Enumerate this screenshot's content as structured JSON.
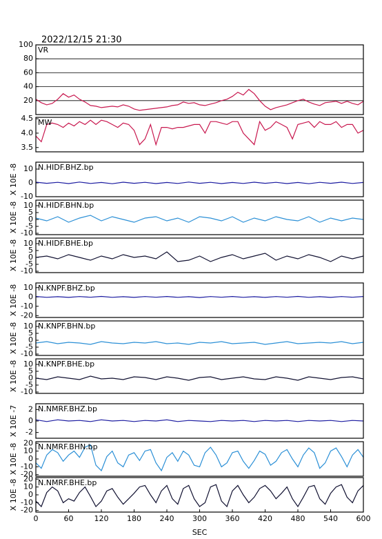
{
  "title": "2022/12/15 21:30",
  "chart_data": [
    {
      "type": "line",
      "title": "VR",
      "color": "#c8174e",
      "xlim": [
        0,
        600
      ],
      "ylim": [
        0,
        100
      ],
      "yticks": [
        20,
        40,
        60,
        80,
        100
      ],
      "grid": true,
      "x": [
        0,
        10,
        20,
        30,
        40,
        50,
        60,
        70,
        80,
        90,
        100,
        110,
        120,
        130,
        140,
        150,
        160,
        170,
        180,
        190,
        200,
        210,
        220,
        230,
        240,
        250,
        260,
        270,
        280,
        290,
        300,
        310,
        320,
        330,
        340,
        350,
        360,
        370,
        380,
        390,
        400,
        410,
        420,
        430,
        440,
        450,
        460,
        470,
        480,
        490,
        500,
        510,
        520,
        530,
        540,
        550,
        560,
        570,
        580,
        590,
        600
      ],
      "values": [
        22,
        17,
        14,
        16,
        22,
        30,
        25,
        28,
        22,
        18,
        13,
        12,
        10,
        11,
        12,
        11,
        14,
        12,
        8,
        6,
        7,
        8,
        9,
        10,
        11,
        13,
        14,
        18,
        16,
        17,
        14,
        13,
        15,
        17,
        20,
        22,
        26,
        32,
        28,
        36,
        30,
        20,
        12,
        7,
        10,
        12,
        14,
        17,
        20,
        22,
        18,
        15,
        13,
        17,
        18,
        19,
        16,
        19,
        16,
        14,
        19
      ]
    },
    {
      "type": "line",
      "title": "MW",
      "color": "#c8174e",
      "xlim": [
        0,
        600
      ],
      "ylim": [
        3.35,
        4.55
      ],
      "yticks": [
        3.5,
        {
          "value": 4.0,
          "label": "4.0"
        },
        4.5
      ],
      "grid": false,
      "x": [
        0,
        10,
        20,
        30,
        40,
        50,
        60,
        70,
        80,
        90,
        100,
        110,
        120,
        130,
        140,
        150,
        160,
        170,
        180,
        190,
        200,
        210,
        220,
        230,
        240,
        250,
        260,
        270,
        280,
        290,
        300,
        310,
        320,
        330,
        340,
        350,
        360,
        370,
        380,
        390,
        400,
        410,
        420,
        430,
        440,
        450,
        460,
        470,
        480,
        490,
        500,
        510,
        520,
        530,
        540,
        550,
        560,
        570,
        580,
        590,
        600
      ],
      "values": [
        3.9,
        3.7,
        4.3,
        4.35,
        4.3,
        4.2,
        4.35,
        4.25,
        4.4,
        4.3,
        4.45,
        4.3,
        4.45,
        4.4,
        4.3,
        4.2,
        4.35,
        4.3,
        4.1,
        3.6,
        3.8,
        4.3,
        3.6,
        4.2,
        4.2,
        4.15,
        4.2,
        4.2,
        4.25,
        4.3,
        4.3,
        4.0,
        4.4,
        4.4,
        4.35,
        4.3,
        4.4,
        4.4,
        4.0,
        3.8,
        3.6,
        4.4,
        4.1,
        4.2,
        4.4,
        4.3,
        4.2,
        3.8,
        4.3,
        4.35,
        4.4,
        4.2,
        4.4,
        4.3,
        4.3,
        4.4,
        4.2,
        4.3,
        4.3,
        4.0,
        4.1
      ]
    },
    {
      "type": "line",
      "title": "N.HIDF.BHZ.bp",
      "ylabel": "X 10E -8",
      "color": "#1a1aa0",
      "xlim": [
        0,
        600
      ],
      "ylim": [
        -10,
        15
      ],
      "yticks": [
        -10,
        0,
        10
      ],
      "grid": false,
      "x": [
        0,
        20,
        40,
        60,
        80,
        100,
        120,
        140,
        160,
        180,
        200,
        220,
        240,
        260,
        280,
        300,
        320,
        340,
        360,
        380,
        400,
        420,
        440,
        460,
        480,
        500,
        520,
        540,
        560,
        580,
        600
      ],
      "values": [
        0.5,
        -0.3,
        0.4,
        -0.5,
        0.6,
        -0.4,
        0.3,
        -0.6,
        0.5,
        -0.3,
        0.4,
        -0.5,
        0.3,
        -0.4,
        0.6,
        -0.3,
        0.4,
        -0.5,
        0.3,
        -0.4,
        0.5,
        -0.3,
        0.4,
        -0.5,
        0.3,
        -0.6,
        0.4,
        -0.3,
        0.5,
        -0.4,
        0.3
      ]
    },
    {
      "type": "line",
      "title": "N.HIDF.BHN.bp",
      "ylabel": "X 10E -8",
      "color": "#2a8fd6",
      "xlim": [
        0,
        600
      ],
      "ylim": [
        -11,
        14
      ],
      "yticks": [
        -10,
        -5,
        0,
        5,
        10
      ],
      "grid": false,
      "x": [
        0,
        20,
        40,
        60,
        80,
        100,
        120,
        140,
        160,
        180,
        200,
        220,
        240,
        260,
        280,
        300,
        320,
        340,
        360,
        380,
        400,
        420,
        440,
        460,
        480,
        500,
        520,
        540,
        560,
        580,
        600
      ],
      "values": [
        1,
        -1,
        2,
        -2,
        1,
        3,
        -1,
        2,
        0,
        -2,
        1,
        2,
        -1,
        1,
        -2,
        2,
        1,
        -1,
        2,
        -2,
        1,
        -1,
        2,
        0,
        -1,
        2,
        -2,
        1,
        -1,
        1,
        0
      ]
    },
    {
      "type": "line",
      "title": "N.HIDF.BHE.bp",
      "ylabel": "X 10E -8",
      "color": "#101030",
      "xlim": [
        0,
        600
      ],
      "ylim": [
        -11,
        14
      ],
      "yticks": [
        -10,
        -5,
        0,
        5,
        10
      ],
      "grid": false,
      "x": [
        0,
        20,
        40,
        60,
        80,
        100,
        120,
        140,
        160,
        180,
        200,
        220,
        240,
        260,
        280,
        300,
        320,
        340,
        360,
        380,
        400,
        420,
        440,
        460,
        480,
        500,
        520,
        540,
        560,
        580,
        600
      ],
      "values": [
        0,
        1,
        -1,
        2,
        0,
        -2,
        1,
        -1,
        2,
        0,
        1,
        -1,
        4,
        -3,
        -2,
        1,
        -3,
        0,
        2,
        -1,
        1,
        3,
        -2,
        1,
        -1,
        2,
        0,
        -3,
        1,
        -1,
        1
      ]
    },
    {
      "type": "line",
      "title": "N.KNPF.BHZ.bp",
      "ylabel": "X 10E -8",
      "color": "#1a1aa0",
      "xlim": [
        0,
        600
      ],
      "ylim": [
        -22,
        15
      ],
      "yticks": [
        -20,
        -10,
        0,
        10
      ],
      "grid": false,
      "x": [
        0,
        20,
        40,
        60,
        80,
        100,
        120,
        140,
        160,
        180,
        200,
        220,
        240,
        260,
        280,
        300,
        320,
        340,
        360,
        380,
        400,
        420,
        440,
        460,
        480,
        500,
        520,
        540,
        560,
        580,
        600
      ],
      "values": [
        0.5,
        -0.4,
        0.3,
        -0.5,
        0.4,
        -0.3,
        0.6,
        -0.4,
        0.3,
        -0.5,
        0.4,
        -0.3,
        0.5,
        -0.4,
        0.3,
        -0.6,
        0.4,
        -0.3,
        0.5,
        -0.4,
        0.3,
        -0.5,
        0.4,
        -0.3,
        0.6,
        -0.4,
        0.3,
        -0.5,
        0.4,
        -0.3,
        0.5
      ]
    },
    {
      "type": "line",
      "title": "N.KNPF.BHN.bp",
      "ylabel": "X 10E -8",
      "color": "#2a8fd6",
      "xlim": [
        0,
        600
      ],
      "ylim": [
        -11,
        14
      ],
      "yticks": [
        -10,
        -5,
        0,
        5,
        10
      ],
      "grid": false,
      "x": [
        0,
        20,
        40,
        60,
        80,
        100,
        120,
        140,
        160,
        180,
        200,
        220,
        240,
        260,
        280,
        300,
        320,
        340,
        360,
        380,
        400,
        420,
        440,
        460,
        480,
        500,
        520,
        540,
        560,
        580,
        600
      ],
      "values": [
        -2,
        -1,
        -2.5,
        -1.5,
        -2,
        -3,
        -1,
        -2,
        -2.5,
        -1.5,
        -2,
        -1,
        -2.5,
        -2,
        -3,
        -1.5,
        -2,
        -1,
        -2.5,
        -2,
        -1.5,
        -3,
        -2,
        -1,
        -2.5,
        -2,
        -1.5,
        -2,
        -1,
        -2.5,
        -1.5
      ]
    },
    {
      "type": "line",
      "title": "N.KNPF.BHE.bp",
      "ylabel": "X 10E -8",
      "color": "#101030",
      "xlim": [
        0,
        600
      ],
      "ylim": [
        -11,
        14
      ],
      "yticks": [
        -10,
        -5,
        0,
        5,
        10
      ],
      "grid": false,
      "x": [
        0,
        20,
        40,
        60,
        80,
        100,
        120,
        140,
        160,
        180,
        200,
        220,
        240,
        260,
        280,
        300,
        320,
        340,
        360,
        380,
        400,
        420,
        440,
        460,
        480,
        500,
        520,
        540,
        560,
        580,
        600
      ],
      "values": [
        0,
        -1,
        1,
        0,
        -1,
        1.5,
        -0.5,
        0,
        -1,
        1,
        0.5,
        -1,
        1,
        0,
        -1.5,
        0.5,
        1,
        -1,
        0,
        1,
        -0.5,
        -1,
        1,
        0,
        -1.5,
        1,
        0,
        -1,
        0.5,
        1,
        -0.5
      ]
    },
    {
      "type": "line",
      "title": "N.NMRF.BHZ.bp",
      "ylabel": "X 10E -7",
      "color": "#1a1aa0",
      "xlim": [
        0,
        600
      ],
      "ylim": [
        -3,
        3
      ],
      "yticks": [
        -2,
        0,
        2
      ],
      "grid": false,
      "x": [
        0,
        20,
        40,
        60,
        80,
        100,
        120,
        140,
        160,
        180,
        200,
        220,
        240,
        260,
        280,
        300,
        320,
        340,
        360,
        380,
        400,
        420,
        440,
        460,
        480,
        500,
        520,
        540,
        560,
        580,
        600
      ],
      "values": [
        0.2,
        -0.1,
        0.2,
        0,
        0.1,
        -0.1,
        0.2,
        0,
        0.1,
        -0.1,
        0.1,
        0,
        0.2,
        -0.1,
        0.1,
        0,
        -0.1,
        0.1,
        0,
        0.1,
        -0.1,
        0.1,
        0,
        0.1,
        -0.1,
        0.1,
        0,
        0.1,
        -0.1,
        0.1,
        0
      ]
    },
    {
      "type": "line",
      "title": "N.NMRF.BHN.bp",
      "ylabel": "X 10E -8",
      "color": "#2a8fd6",
      "xlim": [
        0,
        600
      ],
      "ylim": [
        -22,
        22
      ],
      "yticks": [
        -20,
        -10,
        0,
        10,
        20
      ],
      "grid": false,
      "x": [
        0,
        10,
        20,
        30,
        40,
        50,
        60,
        70,
        80,
        90,
        100,
        110,
        120,
        130,
        140,
        150,
        160,
        170,
        180,
        190,
        200,
        210,
        220,
        230,
        240,
        250,
        260,
        270,
        280,
        290,
        300,
        310,
        320,
        330,
        340,
        350,
        360,
        370,
        380,
        390,
        400,
        410,
        420,
        430,
        440,
        450,
        460,
        470,
        480,
        490,
        500,
        510,
        520,
        530,
        540,
        550,
        560,
        570,
        580,
        590,
        600
      ],
      "values": [
        -5,
        -12,
        5,
        12,
        8,
        -3,
        5,
        10,
        2,
        15,
        18,
        -8,
        -15,
        3,
        10,
        -5,
        -10,
        5,
        8,
        -2,
        10,
        12,
        -5,
        -15,
        2,
        8,
        -3,
        10,
        5,
        -8,
        -10,
        8,
        15,
        5,
        -10,
        -5,
        8,
        10,
        -3,
        -12,
        -2,
        10,
        6,
        -8,
        -3,
        8,
        12,
        0,
        -10,
        5,
        14,
        8,
        -12,
        -5,
        10,
        14,
        3,
        -10,
        5,
        12,
        2
      ]
    },
    {
      "type": "line",
      "title": "N.NMRF.BHE.bp",
      "ylabel": "X 10E -8",
      "xlabel": "SEC",
      "color": "#101030",
      "xlim": [
        0,
        600
      ],
      "xticks": [
        0,
        60,
        120,
        180,
        240,
        300,
        360,
        420,
        480,
        540,
        600
      ],
      "ylim": [
        -22,
        22
      ],
      "yticks": [
        -20,
        -10,
        0,
        10,
        20
      ],
      "grid": false,
      "x": [
        0,
        10,
        20,
        30,
        40,
        50,
        60,
        70,
        80,
        90,
        100,
        110,
        120,
        130,
        140,
        150,
        160,
        170,
        180,
        190,
        200,
        210,
        220,
        230,
        240,
        250,
        260,
        270,
        280,
        290,
        300,
        310,
        320,
        330,
        340,
        350,
        360,
        370,
        380,
        390,
        400,
        410,
        420,
        430,
        440,
        450,
        460,
        470,
        480,
        490,
        500,
        510,
        520,
        530,
        540,
        550,
        560,
        570,
        580,
        590,
        600
      ],
      "values": [
        -8,
        -15,
        3,
        10,
        5,
        -10,
        -5,
        -8,
        3,
        10,
        -2,
        -15,
        -8,
        5,
        8,
        -3,
        -12,
        -5,
        2,
        10,
        12,
        0,
        -10,
        5,
        12,
        -5,
        -12,
        8,
        12,
        -5,
        -15,
        -10,
        10,
        13,
        -8,
        -15,
        5,
        12,
        0,
        -10,
        -3,
        8,
        12,
        5,
        -5,
        2,
        10,
        -5,
        -15,
        -3,
        10,
        12,
        -5,
        -12,
        2,
        10,
        13,
        -3,
        -10,
        5,
        12
      ]
    }
  ]
}
